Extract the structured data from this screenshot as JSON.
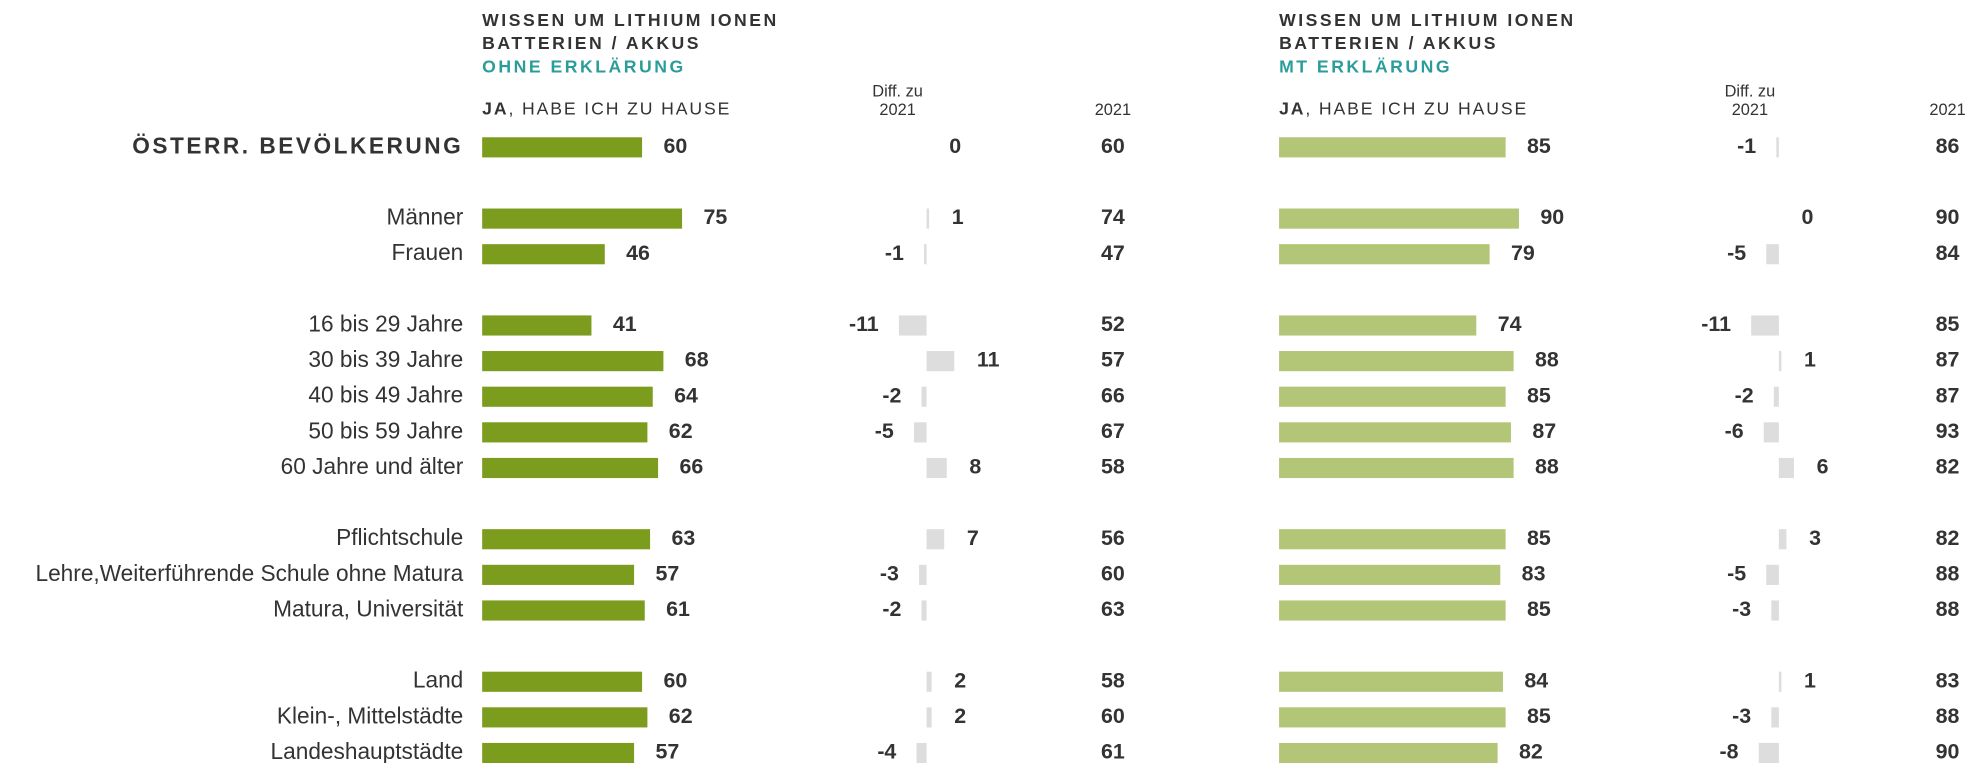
{
  "chart_data": {
    "type": "bar",
    "categories": [
      "ÖSTERR. BEVÖLKERUNG",
      "Männer",
      "Frauen",
      "16 bis 29 Jahre",
      "30 bis 39 Jahre",
      "40 bis 49 Jahre",
      "50 bis 59 Jahre",
      "60 Jahre und älter",
      "Pflichtschule",
      "Lehre,Weiterführende Schule ohne Matura",
      "Matura, Universität",
      "Land",
      "Klein-, Mittelstädte",
      "Landeshauptstädte"
    ],
    "panels": [
      {
        "title_lines": [
          "WISSEN UM LITHIUM IONEN",
          "BATTERIEN / AKKUS"
        ],
        "subtitle": "OHNE ERKLÄRUNG",
        "header_bold": "JA",
        "header_rest": ", HABE ICH ZU HAUSE",
        "diff_header": [
          "Diff. zu",
          "2021"
        ],
        "prev_header": "2021",
        "color": "#7b9c1c",
        "diff_color": "#dddddd",
        "values": [
          60,
          75,
          46,
          41,
          68,
          64,
          62,
          66,
          63,
          57,
          61,
          60,
          62,
          57
        ],
        "diff": [
          0,
          1,
          -1,
          -11,
          11,
          -2,
          -5,
          8,
          7,
          -3,
          -2,
          2,
          2,
          -4
        ],
        "prev": [
          60,
          74,
          47,
          52,
          57,
          66,
          67,
          58,
          56,
          60,
          63,
          58,
          60,
          61
        ]
      },
      {
        "title_lines": [
          "WISSEN UM LITHIUM IONEN",
          "BATTERIEN / AKKUS"
        ],
        "subtitle": "MT ERKLÄRUNG",
        "header_bold": "JA",
        "header_rest": ", HABE ICH ZU HAUSE",
        "diff_header": [
          "Diff. zu",
          "2021"
        ],
        "prev_header": "2021",
        "color": "#b3c577",
        "diff_color": "#dddddd",
        "values": [
          85,
          90,
          79,
          74,
          88,
          85,
          87,
          88,
          85,
          83,
          85,
          84,
          85,
          82
        ],
        "diff": [
          -1,
          0,
          -5,
          -11,
          1,
          -2,
          -6,
          6,
          3,
          -5,
          -3,
          1,
          -3,
          -8
        ],
        "prev": [
          86,
          90,
          84,
          85,
          87,
          87,
          93,
          82,
          82,
          88,
          88,
          83,
          88,
          90
        ]
      }
    ]
  }
}
